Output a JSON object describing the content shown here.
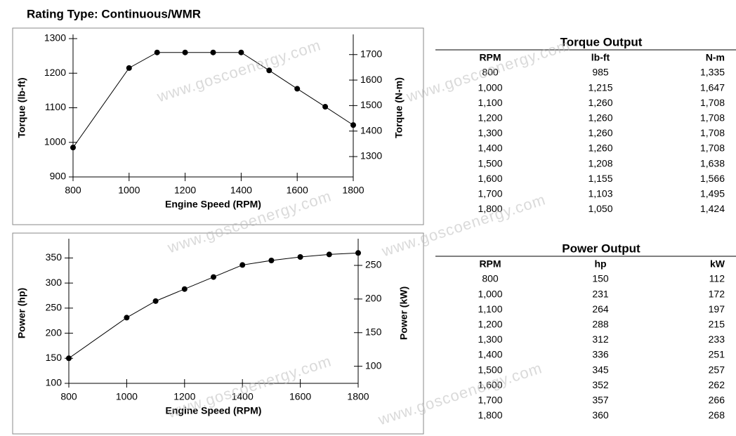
{
  "title": "Rating Type: Continuous/WMR",
  "watermark": "www.goscoenergy.com",
  "chart_data": [
    {
      "type": "line",
      "x": [
        800,
        1000,
        1100,
        1200,
        1300,
        1400,
        1500,
        1600,
        1700,
        1800
      ],
      "series": [
        {
          "color": "#000000",
          "values": [
            985,
            1215,
            1260,
            1260,
            1260,
            1260,
            1208,
            1155,
            1103,
            1050
          ]
        }
      ],
      "xlim": [
        800,
        1800
      ],
      "xticks": [
        800,
        1000,
        1200,
        1400,
        1600,
        1800
      ],
      "ylim": [
        900,
        1300
      ],
      "yticks": [
        900,
        1000,
        1100,
        1200,
        1300
      ],
      "y2lim": [
        1220.2,
        1762.6
      ],
      "y2ticks": [
        1300,
        1400,
        1500,
        1600,
        1700
      ],
      "xlabel": "Engine Speed (RPM)",
      "ylabel": "Torque (lb-ft)",
      "y2label": "Torque (N-m)"
    },
    {
      "type": "line",
      "x": [
        800,
        1000,
        1100,
        1200,
        1300,
        1400,
        1500,
        1600,
        1700,
        1800
      ],
      "series": [
        {
          "color": "#000000",
          "values": [
            150,
            231,
            264,
            288,
            312,
            336,
            345,
            352,
            357,
            360
          ]
        }
      ],
      "xlim": [
        800,
        1800
      ],
      "xticks": [
        800,
        1000,
        1200,
        1400,
        1600,
        1800
      ],
      "ylim": [
        100,
        380
      ],
      "yticks": [
        100,
        150,
        200,
        250,
        300,
        350
      ],
      "y2lim": [
        74.6,
        283.4
      ],
      "y2ticks": [
        100,
        150,
        200,
        250
      ],
      "xlabel": "Engine Speed (RPM)",
      "ylabel": "Power (hp)",
      "y2label": "Power (kW)"
    }
  ],
  "tables": [
    {
      "title": "Torque Output",
      "columns": [
        "RPM",
        "lb-ft",
        "N-m"
      ],
      "rows": [
        [
          "800",
          "985",
          "1,335"
        ],
        [
          "1,000",
          "1,215",
          "1,647"
        ],
        [
          "1,100",
          "1,260",
          "1,708"
        ],
        [
          "1,200",
          "1,260",
          "1,708"
        ],
        [
          "1,300",
          "1,260",
          "1,708"
        ],
        [
          "1,400",
          "1,260",
          "1,708"
        ],
        [
          "1,500",
          "1,208",
          "1,638"
        ],
        [
          "1,600",
          "1,155",
          "1,566"
        ],
        [
          "1,700",
          "1,103",
          "1,495"
        ],
        [
          "1,800",
          "1,050",
          "1,424"
        ]
      ]
    },
    {
      "title": "Power Output",
      "columns": [
        "RPM",
        "hp",
        "kW"
      ],
      "rows": [
        [
          "800",
          "150",
          "112"
        ],
        [
          "1,000",
          "231",
          "172"
        ],
        [
          "1,100",
          "264",
          "197"
        ],
        [
          "1,200",
          "288",
          "215"
        ],
        [
          "1,300",
          "312",
          "233"
        ],
        [
          "1,400",
          "336",
          "251"
        ],
        [
          "1,500",
          "345",
          "257"
        ],
        [
          "1,600",
          "352",
          "262"
        ],
        [
          "1,700",
          "357",
          "266"
        ],
        [
          "1,800",
          "360",
          "268"
        ]
      ]
    }
  ]
}
